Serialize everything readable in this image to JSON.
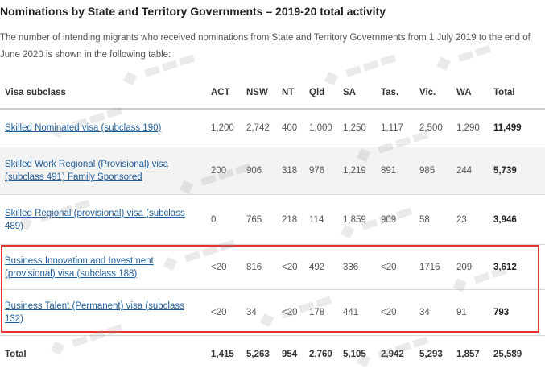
{
  "title": "Nominations by State and Territory Governments – 2019-20 total activity",
  "intro": "The number of intending migrants who received nominations from State and Territory Governments from 1 July 2019 to the end of June 2020 is shown in the following table:",
  "table": {
    "headers": [
      "Visa subclass",
      "ACT",
      "NSW",
      "NT",
      "Qld",
      "SA",
      "Tas.",
      "Vic.",
      "WA",
      "Total"
    ],
    "rows": [
      {
        "visa": "Skilled Nominated visa (subclass 190)",
        "values": [
          "1,200",
          "2,742",
          "400",
          "1,000",
          "1,250",
          "1,117",
          "2,500",
          "1,290"
        ],
        "total": "11,499"
      },
      {
        "visa": "Skilled Work Regional (Provisional) visa (subclass 491) Family Sponsored",
        "values": [
          "200",
          "906",
          "318",
          "976",
          "1,219",
          "891",
          "985",
          "244"
        ],
        "total": "5,739"
      },
      {
        "visa": "Skilled Regional (provisional) visa (subclass 489)",
        "values": [
          "0",
          "765",
          "218",
          "114",
          "1,859",
          "909",
          "58",
          "23"
        ],
        "total": "3,946"
      },
      {
        "visa": "Business Innovation and Investment (provisional) visa (subclass 188)",
        "values": [
          "<20",
          "816",
          "<20",
          "492",
          "336",
          "<20",
          "1716",
          "209"
        ],
        "total": "3,612"
      },
      {
        "visa": "Business Talent (Permanent) visa (subclass 132)",
        "values": [
          "<20",
          "34",
          "<20",
          "178",
          "441",
          "<20",
          "34",
          "91"
        ],
        "total": "793"
      }
    ],
    "total_row": {
      "label": "Total",
      "values": [
        "1,415",
        "5,263",
        "954",
        "2,760",
        "5,105",
        "2,942",
        "5,293",
        "1,857"
      ],
      "total": "25,589"
    }
  },
  "colors": {
    "link": "#1f5e9c",
    "highlight": "#e8322d",
    "alt_row": "#f3f3f3"
  }
}
